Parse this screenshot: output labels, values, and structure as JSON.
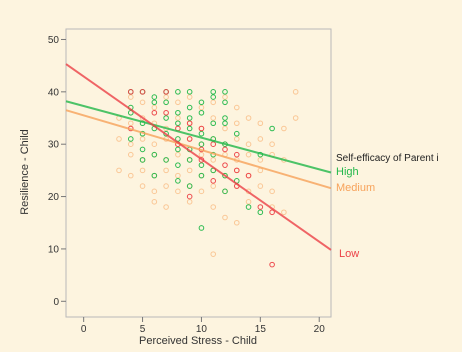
{
  "chart_data": {
    "type": "scatter",
    "xlabel": "Perceived Stress - Child",
    "ylabel": "Resilience - Child",
    "xlim": [
      -1.5,
      21
    ],
    "ylim": [
      -3,
      52
    ],
    "xticks": [
      0,
      5,
      10,
      15,
      20
    ],
    "yticks": [
      0,
      10,
      20,
      30,
      40,
      50
    ],
    "grid": false,
    "legend_title": "Self-efficacy of Parent i",
    "legend_placement": "right",
    "series": [
      {
        "name": "High",
        "color": "#22b84a",
        "line": {
          "x": [
            -1.5,
            21
          ],
          "y": [
            38.2,
            24.6
          ]
        },
        "points": [
          [
            4,
            40
          ],
          [
            5,
            40
          ],
          [
            6,
            39
          ],
          [
            7,
            40
          ],
          [
            8,
            40
          ],
          [
            9,
            40
          ],
          [
            11,
            40
          ],
          [
            12,
            40
          ],
          [
            4,
            37
          ],
          [
            6,
            38
          ],
          [
            7,
            38
          ],
          [
            8,
            36
          ],
          [
            9,
            37
          ],
          [
            10,
            38
          ],
          [
            11,
            39
          ],
          [
            12,
            38
          ],
          [
            4,
            36
          ],
          [
            5,
            34
          ],
          [
            7,
            35
          ],
          [
            8,
            34
          ],
          [
            9,
            35
          ],
          [
            10,
            36
          ],
          [
            11,
            34
          ],
          [
            12,
            35
          ],
          [
            5,
            32
          ],
          [
            6,
            33
          ],
          [
            7,
            32
          ],
          [
            8,
            31
          ],
          [
            9,
            33
          ],
          [
            10,
            32
          ],
          [
            11,
            31
          ],
          [
            12,
            34
          ],
          [
            13,
            32
          ],
          [
            4,
            31
          ],
          [
            5,
            29
          ],
          [
            6,
            28
          ],
          [
            8,
            29
          ],
          [
            9,
            29
          ],
          [
            10,
            30
          ],
          [
            11,
            28
          ],
          [
            12,
            30
          ],
          [
            5,
            27
          ],
          [
            7,
            27
          ],
          [
            8,
            26
          ],
          [
            9,
            27
          ],
          [
            10,
            26
          ],
          [
            11,
            25
          ],
          [
            12,
            24
          ],
          [
            13,
            23
          ],
          [
            6,
            24
          ],
          [
            8,
            23
          ],
          [
            9,
            22
          ],
          [
            10,
            24
          ],
          [
            12,
            21
          ],
          [
            14,
            18
          ],
          [
            15,
            17
          ],
          [
            15,
            28
          ],
          [
            10,
            14
          ],
          [
            16,
            33
          ]
        ]
      },
      {
        "name": "Medium",
        "color": "#f7a25a",
        "line": {
          "x": [
            -1.5,
            21
          ],
          "y": [
            36.5,
            21.6
          ]
        },
        "points": [
          [
            4,
            39
          ],
          [
            5,
            38
          ],
          [
            6,
            37
          ],
          [
            7,
            39
          ],
          [
            8,
            38
          ],
          [
            9,
            39
          ],
          [
            10,
            37
          ],
          [
            11,
            38
          ],
          [
            12,
            39
          ],
          [
            13,
            37
          ],
          [
            3,
            35
          ],
          [
            4,
            34
          ],
          [
            5,
            35
          ],
          [
            6,
            34
          ],
          [
            7,
            33
          ],
          [
            8,
            35
          ],
          [
            9,
            34
          ],
          [
            10,
            33
          ],
          [
            11,
            35
          ],
          [
            12,
            33
          ],
          [
            13,
            34
          ],
          [
            14,
            35
          ],
          [
            15,
            34
          ],
          [
            3,
            31
          ],
          [
            4,
            30
          ],
          [
            5,
            31
          ],
          [
            6,
            30
          ],
          [
            7,
            31
          ],
          [
            8,
            30
          ],
          [
            9,
            31
          ],
          [
            10,
            30
          ],
          [
            11,
            31
          ],
          [
            12,
            30
          ],
          [
            13,
            31
          ],
          [
            14,
            30
          ],
          [
            15,
            31
          ],
          [
            16,
            30
          ],
          [
            4,
            28
          ],
          [
            5,
            27
          ],
          [
            6,
            28
          ],
          [
            7,
            27
          ],
          [
            8,
            28
          ],
          [
            9,
            27
          ],
          [
            10,
            28
          ],
          [
            11,
            27
          ],
          [
            12,
            28
          ],
          [
            13,
            27
          ],
          [
            14,
            28
          ],
          [
            15,
            27
          ],
          [
            16,
            28
          ],
          [
            17,
            27
          ],
          [
            3,
            25
          ],
          [
            4,
            24
          ],
          [
            5,
            25
          ],
          [
            6,
            24
          ],
          [
            7,
            25
          ],
          [
            8,
            24
          ],
          [
            9,
            25
          ],
          [
            10,
            24
          ],
          [
            11,
            25
          ],
          [
            12,
            24
          ],
          [
            13,
            25
          ],
          [
            14,
            24
          ],
          [
            15,
            25
          ],
          [
            5,
            22
          ],
          [
            6,
            21
          ],
          [
            7,
            22
          ],
          [
            8,
            21
          ],
          [
            9,
            22
          ],
          [
            10,
            21
          ],
          [
            11,
            22
          ],
          [
            12,
            21
          ],
          [
            13,
            22
          ],
          [
            14,
            21
          ],
          [
            15,
            22
          ],
          [
            16,
            21
          ],
          [
            6,
            19
          ],
          [
            7,
            18
          ],
          [
            9,
            19
          ],
          [
            11,
            18
          ],
          [
            12,
            16
          ],
          [
            13,
            15
          ],
          [
            14,
            19
          ],
          [
            16,
            18
          ],
          [
            17,
            17
          ],
          [
            18,
            40
          ],
          [
            17,
            33
          ],
          [
            18,
            35
          ],
          [
            11,
            9
          ]
        ]
      },
      {
        "name": "Low",
        "color": "#ec4147",
        "line": {
          "x": [
            -1.5,
            21
          ],
          "y": [
            45.3,
            9.8
          ]
        },
        "points": [
          [
            4,
            40
          ],
          [
            5,
            40
          ],
          [
            7,
            40
          ],
          [
            6,
            36
          ],
          [
            7,
            36
          ],
          [
            8,
            33
          ],
          [
            9,
            34
          ],
          [
            10,
            33
          ],
          [
            4,
            33
          ],
          [
            8,
            30
          ],
          [
            9,
            31
          ],
          [
            10,
            29
          ],
          [
            11,
            30
          ],
          [
            12,
            29
          ],
          [
            13,
            28
          ],
          [
            10,
            27
          ],
          [
            12,
            26
          ],
          [
            13,
            25
          ],
          [
            14,
            24
          ],
          [
            11,
            23
          ],
          [
            13,
            22
          ],
          [
            15,
            18
          ],
          [
            16,
            17
          ],
          [
            9,
            20
          ],
          [
            16,
            7
          ]
        ]
      }
    ]
  }
}
